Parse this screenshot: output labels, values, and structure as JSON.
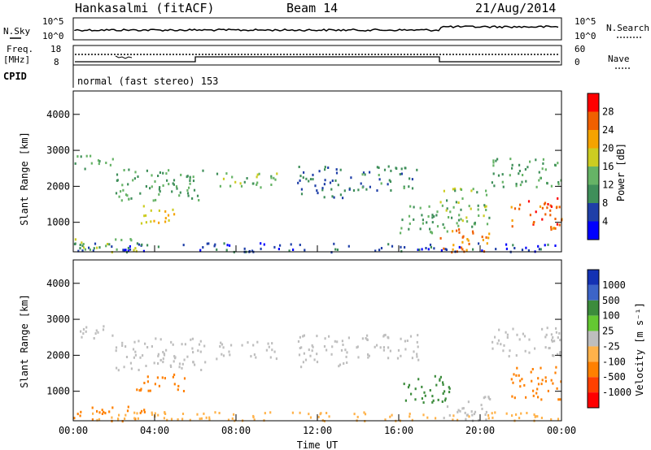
{
  "header": {
    "station": "Hankasalmi (fitACF)",
    "beam": "Beam 14",
    "date": "21/Aug/2014"
  },
  "top_panels": {
    "nsky_label": "N.Sky",
    "nsky_ticks": [
      "10^5",
      "10^0"
    ],
    "nsearch_label": "N.Search",
    "nsearch_ticks": [
      "10^5",
      "10^0"
    ],
    "freq_label_1": "Freq.",
    "freq_label_2": "[MHz]",
    "freq_ticks": [
      "18",
      "8"
    ],
    "nave_label": "Nave",
    "nave_ticks": [
      "60",
      "0"
    ],
    "cpid_label": "CPID",
    "cpid_text": "normal (fast stereo) 153"
  },
  "colors": {
    "power_scale": [
      "#0000ff",
      "#1f3fa8",
      "#3f8f5a",
      "#66b366",
      "#cccc22",
      "#f5a300",
      "#f06000",
      "#ff0000"
    ],
    "velocity_scale": [
      "#ff0000",
      "#ff4000",
      "#ff8000",
      "#ffb24a",
      "#bebebe",
      "#64c832",
      "#3c8c3c",
      "#3c64c8",
      "#1432b4"
    ]
  },
  "chart_data": [
    {
      "type": "heatmap",
      "title": "",
      "xlabel": "",
      "ylabel": "Slant Range [km]",
      "xlim": [
        "00:00",
        "24:00"
      ],
      "ylim": [
        180,
        4650
      ],
      "x_ticks": [
        "00:00",
        "04:00",
        "08:00",
        "12:00",
        "16:00",
        "20:00",
        "00:00"
      ],
      "y_ticks": [
        1000,
        2000,
        3000,
        4000
      ],
      "colorbar_label": "Power [dB]",
      "colorbar_ticks": [
        4,
        8,
        12,
        16,
        20,
        24,
        28
      ],
      "colorbar_range": [
        0,
        32
      ],
      "scatter_bands": [
        {
          "t": [
            0,
            2
          ],
          "r": [
            2500,
            2900
          ],
          "level": 12
        },
        {
          "t": [
            2,
            6.5
          ],
          "r": [
            1600,
            2500
          ],
          "level": 12
        },
        {
          "t": [
            3,
            5
          ],
          "r": [
            1000,
            1500
          ],
          "level": 20
        },
        {
          "t": [
            0,
            3.5
          ],
          "r": [
            200,
            600
          ],
          "level": 14
        },
        {
          "t": [
            7,
            10
          ],
          "r": [
            1900,
            2400
          ],
          "level": 14
        },
        {
          "t": [
            11,
            13.5
          ],
          "r": [
            1700,
            2600
          ],
          "level": 8
        },
        {
          "t": [
            13.5,
            17
          ],
          "r": [
            1900,
            2600
          ],
          "level": 10
        },
        {
          "t": [
            16,
            18.5
          ],
          "r": [
            700,
            1500
          ],
          "level": 12
        },
        {
          "t": [
            18,
            20.5
          ],
          "r": [
            200,
            900
          ],
          "level": 24
        },
        {
          "t": [
            18,
            20.5
          ],
          "r": [
            900,
            2000
          ],
          "level": 14
        },
        {
          "t": [
            20.5,
            24
          ],
          "r": [
            2000,
            2800
          ],
          "level": 12
        },
        {
          "t": [
            21.5,
            24
          ],
          "r": [
            800,
            1700
          ],
          "level": 26
        },
        {
          "t": [
            0,
            24
          ],
          "r": [
            200,
            450
          ],
          "level": 6
        }
      ]
    },
    {
      "type": "heatmap",
      "title": "",
      "xlabel": "Time UT",
      "ylabel": "Slant Range [km]",
      "xlim": [
        "00:00",
        "24:00"
      ],
      "ylim": [
        180,
        4650
      ],
      "x_ticks": [
        "00:00",
        "04:00",
        "08:00",
        "12:00",
        "16:00",
        "20:00",
        "00:00"
      ],
      "y_ticks": [
        1000,
        2000,
        3000,
        4000
      ],
      "colorbar_label": "Velocity [m s⁻¹]",
      "colorbar_ticks": [
        1000,
        500,
        100,
        25,
        -25,
        -100,
        -500,
        -1000
      ],
      "scatter_bands": [
        {
          "t": [
            0,
            2
          ],
          "r": [
            2500,
            2900
          ],
          "level": 0
        },
        {
          "t": [
            2,
            6.5
          ],
          "r": [
            1600,
            2500
          ],
          "level": 0
        },
        {
          "t": [
            3,
            5.5
          ],
          "r": [
            1000,
            1500
          ],
          "level": -300
        },
        {
          "t": [
            0,
            3.5
          ],
          "r": [
            200,
            600
          ],
          "level": -150
        },
        {
          "t": [
            7,
            10
          ],
          "r": [
            1900,
            2400
          ],
          "level": 0
        },
        {
          "t": [
            11,
            13.5
          ],
          "r": [
            1700,
            2600
          ],
          "level": 0
        },
        {
          "t": [
            13.5,
            17
          ],
          "r": [
            1900,
            2600
          ],
          "level": 0
        },
        {
          "t": [
            16,
            18.5
          ],
          "r": [
            700,
            1500
          ],
          "level": 150
        },
        {
          "t": [
            18,
            20.5
          ],
          "r": [
            200,
            900
          ],
          "level": 0
        },
        {
          "t": [
            20.5,
            24
          ],
          "r": [
            2000,
            2800
          ],
          "level": 0
        },
        {
          "t": [
            21.5,
            24
          ],
          "r": [
            800,
            1700
          ],
          "level": -300
        },
        {
          "t": [
            0,
            24
          ],
          "r": [
            200,
            450
          ],
          "level": -50
        }
      ]
    }
  ]
}
